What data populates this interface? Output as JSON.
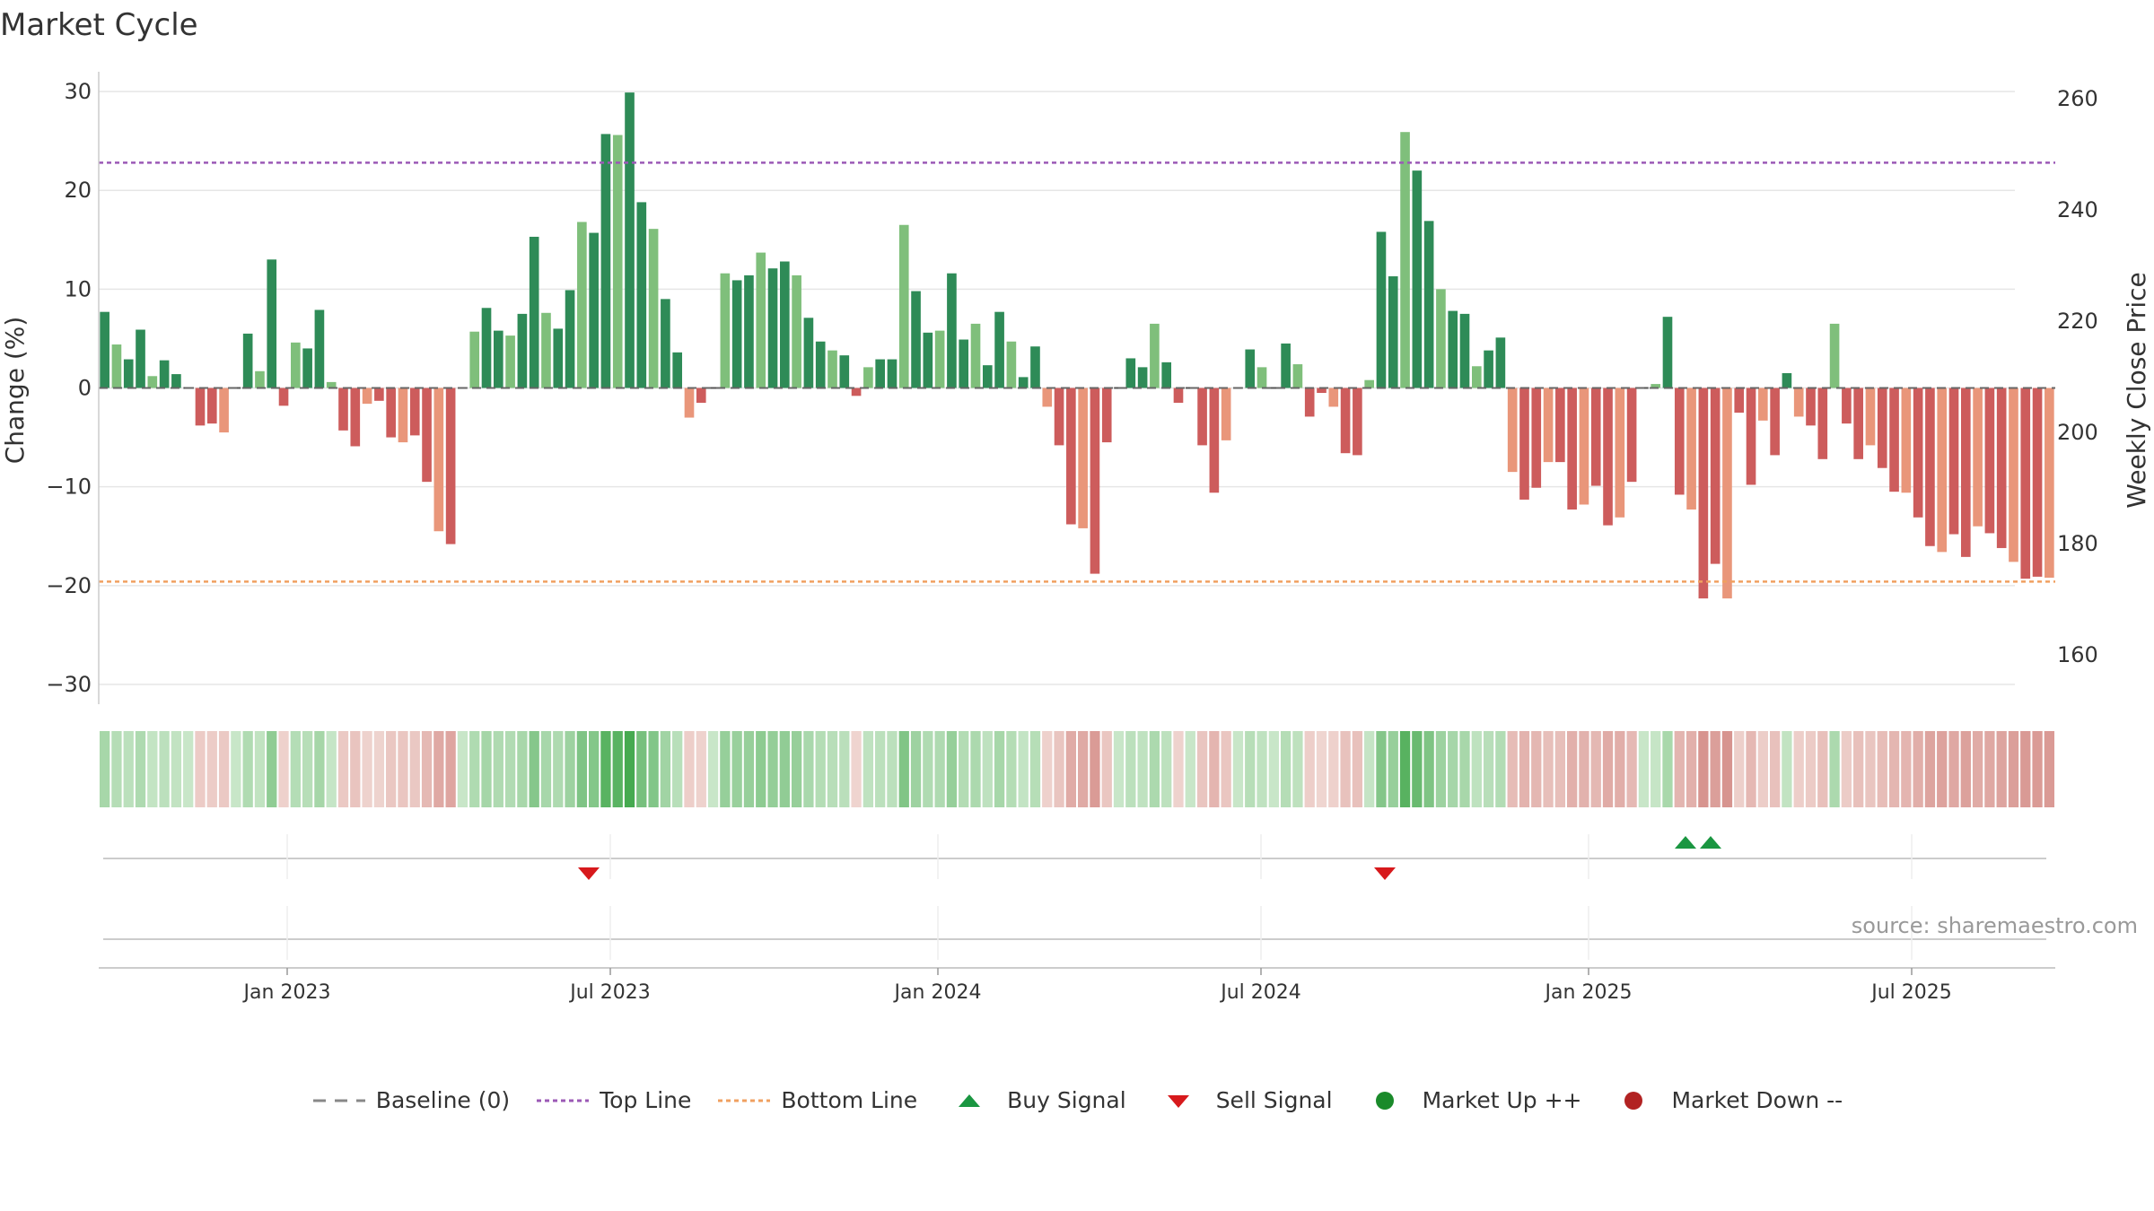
{
  "title": "Market Cycle",
  "source": "source: sharemaestro.com",
  "legend": [
    {
      "label": "Baseline (0)",
      "icon": "dash-line",
      "color": "#888888"
    },
    {
      "label": "Top Line",
      "icon": "dotted-line",
      "color": "#9b59b6"
    },
    {
      "label": "Bottom Line",
      "icon": "dotted-line",
      "color": "#f0a060"
    },
    {
      "label": "Buy Signal",
      "icon": "triangle-up",
      "color": "#1a9641"
    },
    {
      "label": "Sell Signal",
      "icon": "triangle-down",
      "color": "#d7191c"
    },
    {
      "label": "Market Up ++",
      "icon": "circle",
      "color": "#1a8a2a"
    },
    {
      "label": "Market Down --",
      "icon": "circle",
      "color": "#b22222"
    }
  ],
  "chart_data": {
    "type": "bar",
    "ylabel": "Change (%)",
    "y2label": "Weekly Close Price",
    "ylim": [
      -32,
      32
    ],
    "yticks": [
      "30",
      "20",
      "10",
      "0",
      "−10",
      "−20",
      "−30"
    ],
    "y2ticks": [
      "260",
      "240",
      "220",
      "200",
      "180",
      "160"
    ],
    "xticks": [
      "Jan 2023",
      "Jul 2023",
      "Jan 2024",
      "Jul 2024",
      "Jan 2025",
      "Jul 2025"
    ],
    "top_line": 22.8,
    "bottom_line": -19.6,
    "grid": true,
    "legend_position": "bottom",
    "colors": {
      "up_strong": "#2e8b57",
      "up_light": "#7fbf7b",
      "down_strong": "#cd5c5c",
      "down_light": "#e9967a"
    },
    "values": [
      7.7,
      4.4,
      2.9,
      5.9,
      1.2,
      2.8,
      1.4,
      0,
      -3.8,
      -3.6,
      -4.5,
      0,
      5.5,
      1.7,
      13.0,
      -1.8,
      4.6,
      4.0,
      7.9,
      0.6,
      -4.3,
      -5.9,
      -1.6,
      -1.3,
      -5.0,
      -5.5,
      -4.8,
      -9.5,
      -14.5,
      -15.8,
      0,
      5.7,
      8.1,
      5.8,
      5.3,
      7.5,
      15.3,
      7.6,
      6.0,
      9.9,
      16.8,
      15.7,
      25.7,
      25.6,
      29.9,
      18.8,
      16.1,
      9.0,
      3.6,
      -3.0,
      -1.5,
      0,
      11.6,
      10.9,
      11.4,
      13.7,
      12.1,
      12.8,
      11.4,
      7.1,
      4.7,
      3.8,
      3.3,
      -0.8,
      2.1,
      2.9,
      2.9,
      16.5,
      9.8,
      5.6,
      5.8,
      11.6,
      4.9,
      6.5,
      2.3,
      7.7,
      4.7,
      1.1,
      4.2,
      -1.9,
      -5.8,
      -13.8,
      -14.2,
      -18.8,
      -5.5,
      0,
      3.0,
      2.1,
      6.5,
      2.6,
      -1.5,
      0,
      -5.8,
      -10.6,
      -5.3,
      0,
      3.9,
      2.1,
      0,
      4.5,
      2.4,
      -2.9,
      -0.5,
      -1.9,
      -6.6,
      -6.8,
      0.8,
      15.8,
      11.3,
      25.9,
      22.0,
      16.9,
      10.0,
      7.8,
      7.5,
      2.2,
      3.8,
      5.1,
      -8.5,
      -11.3,
      -10.1,
      -7.5,
      -7.5,
      -12.3,
      -11.8,
      -9.9,
      -13.9,
      -13.1,
      -9.5,
      0,
      0.4,
      7.2,
      -10.8,
      -12.3,
      -21.3,
      -17.8,
      -21.3,
      -2.5,
      -9.8,
      -3.3,
      -6.8,
      1.5,
      -2.9,
      -3.8,
      -7.2,
      6.5,
      -3.6,
      -7.2,
      -5.8,
      -8.1,
      -10.5,
      -10.6,
      -13.1,
      -16.0,
      -16.6,
      -14.8,
      -17.1,
      -14.0,
      -14.7,
      -16.2,
      -17.6,
      -19.3,
      -19.1,
      -19.2
    ],
    "strength_hint": "strong",
    "signals": [
      {
        "type": "sell",
        "date": "Jun 2023"
      },
      {
        "type": "sell",
        "date": "Oct 2024"
      },
      {
        "type": "buy",
        "date": "Mar 2025"
      },
      {
        "type": "buy",
        "date": "Mar 2025"
      }
    ]
  }
}
